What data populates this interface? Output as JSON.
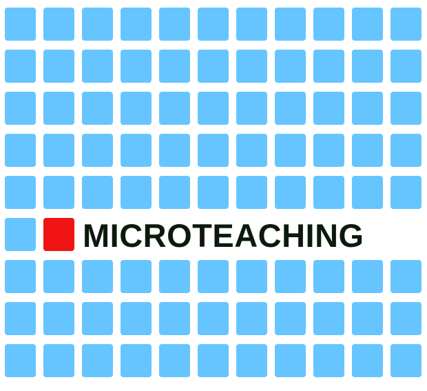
{
  "logo": {
    "wordmark": "MICROTEACHING",
    "colors": {
      "tile": "#66c5ff",
      "accent": "#f01414",
      "text": "#0c1a0c",
      "background": "#ffffff"
    },
    "grid": {
      "rows": 9,
      "columns": 11,
      "accent_tile": {
        "row": 6,
        "column": 2
      },
      "empty_tiles_row": 6,
      "empty_tiles_columns": [
        3,
        4,
        5,
        6,
        7,
        8,
        9,
        10,
        11
      ]
    }
  }
}
